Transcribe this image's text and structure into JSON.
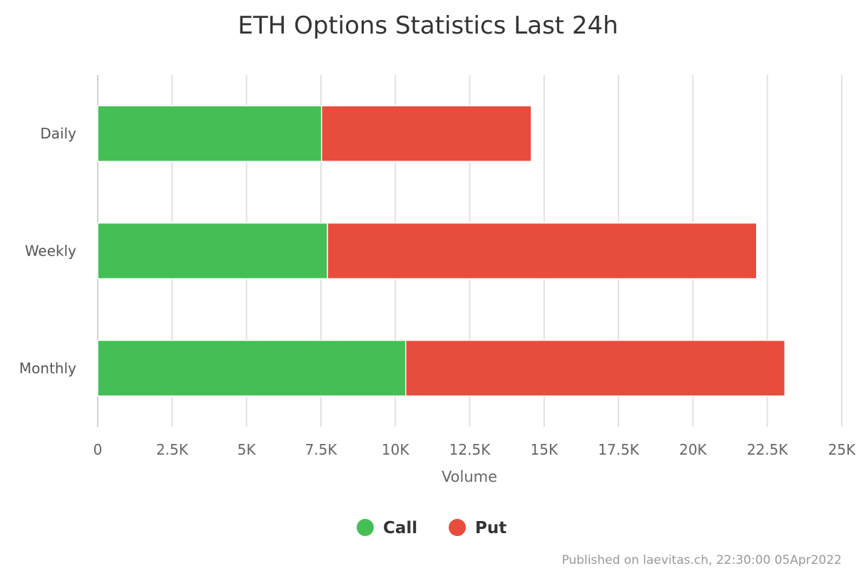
{
  "chart_data": {
    "type": "bar",
    "orientation": "horizontal",
    "stacked": true,
    "title": "ETH Options Statistics Last 24h",
    "categories": [
      "Daily",
      "Weekly",
      "Monthly"
    ],
    "series": [
      {
        "name": "Call",
        "color": "#45bf55",
        "values": [
          7520,
          7720,
          10350
        ]
      },
      {
        "name": "Put",
        "color": "#e84c3d",
        "values": [
          7050,
          14420,
          12740
        ]
      }
    ],
    "xlabel": "Volume",
    "ylabel": "",
    "xlim": [
      0,
      25000
    ],
    "ticks": [
      0,
      2500,
      5000,
      7500,
      10000,
      12500,
      15000,
      17500,
      20000,
      22500,
      25000
    ],
    "tick_labels": [
      "0",
      "2.5K",
      "5K",
      "7.5K",
      "10K",
      "12.5K",
      "15K",
      "17.5K",
      "20K",
      "22.5K",
      "25K"
    ],
    "grid": true,
    "legend": "bottom-center"
  },
  "credit": "Published on laevitas.ch, 22:30:00 05Apr2022"
}
